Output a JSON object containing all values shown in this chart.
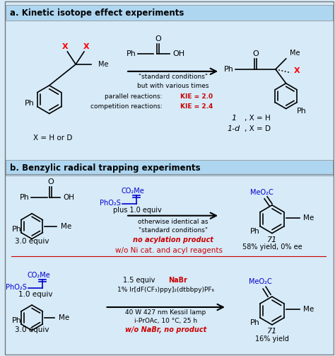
{
  "title_a": "a. Kinetic isotope effect experiments",
  "title_b": "b. Benzylic radical trapping experiments",
  "bg_color": "#d6eaf8",
  "header_a_color": "#aed6f1",
  "header_b_color": "#aed6f1",
  "text_color_black": "#000000",
  "text_color_red": "#cc0000",
  "text_color_blue": "#0000cc",
  "fig_width": 4.74,
  "fig_height": 5.03,
  "section_a": {
    "conditions_text": [
      "\"standard conditions\"",
      "but with various times",
      "parallel reactions: KIE = 2.0",
      "competition reactions: KIE = 2.4"
    ],
    "label_left": "X = H or D",
    "label_right1": "1, X = H",
    "label_right2": "1-d, X = D"
  },
  "section_b_top": {
    "reagent_text": "plus 1.0 equiv",
    "conditions_text": "otherwise identical as\n\"standard conditions\"",
    "result_text": "no acylation product",
    "yield_text": "58% yield, 0% ee",
    "compound_num": "71",
    "label_equiv": "3.0 equiv"
  },
  "section_b_divider": "w/o Ni cat. and acyl reagents",
  "section_b_bottom": {
    "reagent_text1": "1.5 equiv NaBr",
    "reagent_text2": "1% Ir[dF(CF₃)ppy]₂(dtbbpy)PF₆",
    "conditions_text": "40 W 427 nm Kessil lamp\ni-PrOAc, 10 °C, 25 h",
    "result_text": "w/o NaBr, no product",
    "yield_text": "16% yield",
    "compound_num": "71",
    "label_equiv1": "1.0 equiv",
    "label_equiv2": "3.0 equiv"
  }
}
